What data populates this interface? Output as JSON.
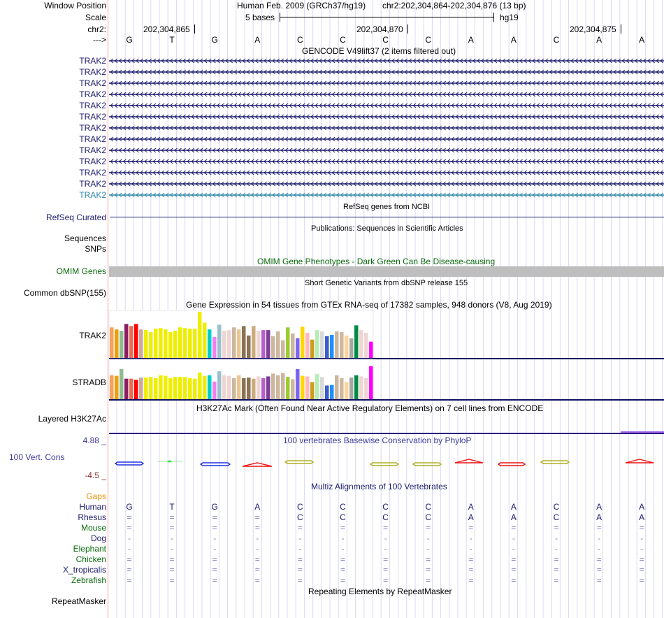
{
  "header": {
    "window_position_label": "Window Position",
    "scale_label": "Scale",
    "chrom_label": "chr2:",
    "strand_label": "--->",
    "assembly": "Human Feb. 2009 (GRCh37/hg19)",
    "position": "chr2:202,304,864-202,304,876 (13 bp)",
    "scale_text": "5 bases",
    "scale_db": "hg19",
    "coord_ticks": [
      "202,304,865",
      "202,304,870",
      "202,304,875"
    ],
    "bases": [
      "G",
      "T",
      "G",
      "A",
      "C",
      "C",
      "C",
      "C",
      "A",
      "A",
      "C",
      "A",
      "A"
    ]
  },
  "gencode": {
    "title": "GENCODE V49lift37 (2 items filtered out)",
    "items": [
      "TRAK2",
      "TRAK2",
      "TRAK2",
      "TRAK2",
      "TRAK2",
      "TRAK2",
      "TRAK2",
      "TRAK2",
      "TRAK2",
      "TRAK2",
      "TRAK2",
      "TRAK2",
      "TRAK2"
    ],
    "color": "#1b1b6b",
    "last_color": "#2e86a8"
  },
  "refseq": {
    "title": "RefSeq genes from NCBI",
    "label": "RefSeq Curated"
  },
  "publications": {
    "title": "Publications: Sequences in Scientific Articles",
    "label1": "Sequences",
    "label2": "SNPs"
  },
  "omim": {
    "title": "OMIM Gene Phenotypes - Dark Green Can Be Disease-causing",
    "label": "OMIM Genes",
    "bar_color": "#bebebe"
  },
  "dbsnp": {
    "title": "Short Genetic Variants from dbSNP release 155",
    "label": "Common dbSNP(155)"
  },
  "gtex": {
    "title": "Gene Expression in 54 tissues from GTEx RNA-seq of 17382 samples, 948 donors (V8, Aug 2019)",
    "genes": [
      "TRAK2",
      "STRADB"
    ]
  },
  "chart_data": {
    "type": "bar",
    "title": "Gene Expression in 54 tissues from GTEx RNA-seq of 17382 samples, 948 donors (V8, Aug 2019)",
    "colors": [
      "#f7a15a",
      "#ee9f0f",
      "#8fbc8f",
      "#8b1c62",
      "#ee6a50",
      "#ff0000",
      "#cdaa98",
      "#eeee00",
      "#eeee00",
      "#eeee00",
      "#eeee00",
      "#eeee00",
      "#eeee00",
      "#eeee00",
      "#eeee00",
      "#eeee00",
      "#eeee00",
      "#eeee00",
      "#eeee00",
      "#eeee00",
      "#00cdcd",
      "#ee82ee",
      "#9ac0cd",
      "#eed5d2",
      "#eed5d2",
      "#cdb79e",
      "#eec591",
      "#8b7355",
      "#8b7355",
      "#cdaa7d",
      "#eed5d2",
      "#b45fcd",
      "#7d3c98",
      "#cdb79e",
      "#cdb79e",
      "#cdb79e",
      "#9acd32",
      "#cdb79e",
      "#7b68ee",
      "#ffd700",
      "#ffb6c1",
      "#cd9b1d",
      "#b4eeb4",
      "#d9d9d9",
      "#3a5fcd",
      "#1e90ff",
      "#cdb79e",
      "#cdb79e",
      "#ffd39b",
      "#a6a6a6",
      "#008b45",
      "#eed5d2",
      "#eed5d2",
      "#ff00ff"
    ],
    "series": [
      {
        "name": "TRAK2",
        "values": [
          45,
          42,
          40,
          50,
          47,
          50,
          42,
          41,
          38,
          43,
          44,
          42,
          38,
          40,
          45,
          44,
          43,
          43,
          68,
          52,
          42,
          31,
          49,
          40,
          41,
          45,
          42,
          47,
          33,
          47,
          40,
          41,
          41,
          32,
          39,
          26,
          45,
          36,
          29,
          46,
          37,
          27,
          41,
          39,
          32,
          34,
          39,
          38,
          33,
          29,
          48,
          41,
          37,
          24
        ]
      },
      {
        "name": "STRADB",
        "values": [
          42,
          41,
          53,
          36,
          36,
          34,
          38,
          38,
          39,
          37,
          42,
          41,
          37,
          39,
          39,
          39,
          37,
          36,
          47,
          41,
          42,
          31,
          49,
          42,
          41,
          37,
          42,
          37,
          38,
          36,
          40,
          37,
          40,
          45,
          42,
          46,
          39,
          35,
          53,
          41,
          40,
          30,
          44,
          39,
          24,
          25,
          42,
          37,
          30,
          38,
          42,
          40,
          37,
          58
        ]
      }
    ],
    "xlabel": "",
    "ylabel": ""
  },
  "h3k27ac": {
    "title": "H3K27Ac Mark (Often Found Near Active Regulatory Elements) on 7 cell lines from ENCODE",
    "label": "Layered H3K27Ac"
  },
  "phylop": {
    "title": "100 vertebrates Basewise Conservation by PhyloP",
    "label": "100 Vert. Cons",
    "max": "4.88 _",
    "min": "-4.5 _"
  },
  "multiz": {
    "title": "Multiz Alignments of 100 Vertebrates",
    "gaps_label": "Gaps",
    "species": [
      {
        "name": "Human",
        "color": "#1b1b6b",
        "row": [
          "G",
          "T",
          "G",
          "A",
          "C",
          "C",
          "C",
          "C",
          "A",
          "A",
          "C",
          "A",
          "A"
        ]
      },
      {
        "name": "Rhesus",
        "color": "#1b1b6b",
        "row": [
          "=",
          "=",
          "=",
          "=",
          "C",
          "C",
          "C",
          "C",
          "A",
          "A",
          "C",
          "A",
          "A"
        ]
      },
      {
        "name": "Mouse",
        "color": "#0a6a0a",
        "row": [
          "=",
          "=",
          "=",
          "=",
          "=",
          "=",
          "=",
          "=",
          "=",
          "=",
          "=",
          "=",
          "="
        ]
      },
      {
        "name": "Dog",
        "color": "#1b1b6b",
        "row": [
          "-",
          "-",
          "-",
          "-",
          "-",
          "-",
          "-",
          "-",
          "-",
          "-",
          "-",
          "-",
          "-"
        ]
      },
      {
        "name": "Elephant",
        "color": "#0a6a0a",
        "row": [
          "-",
          "-",
          "-",
          "-",
          "-",
          "-",
          "-",
          "-",
          "-",
          "-",
          "-",
          "-",
          "-"
        ]
      },
      {
        "name": "Chicken",
        "color": "#0a6a0a",
        "row": [
          "=",
          "=",
          "=",
          "=",
          "=",
          "=",
          "=",
          "=",
          "=",
          "=",
          "=",
          "=",
          "="
        ]
      },
      {
        "name": "X_tropicalis",
        "color": "#1b1b6b",
        "row": [
          "=",
          "=",
          "=",
          "=",
          "=",
          "=",
          "=",
          "=",
          "=",
          "=",
          "=",
          "=",
          "="
        ]
      },
      {
        "name": "Zebrafish",
        "color": "#0a6a0a",
        "row": [
          "=",
          "=",
          "=",
          "=",
          "=",
          "=",
          "=",
          "=",
          "=",
          "=",
          "=",
          "=",
          "="
        ]
      }
    ]
  },
  "repeatmasker": {
    "title": "Repeating Elements by RepeatMasker",
    "label": "RepeatMasker"
  }
}
